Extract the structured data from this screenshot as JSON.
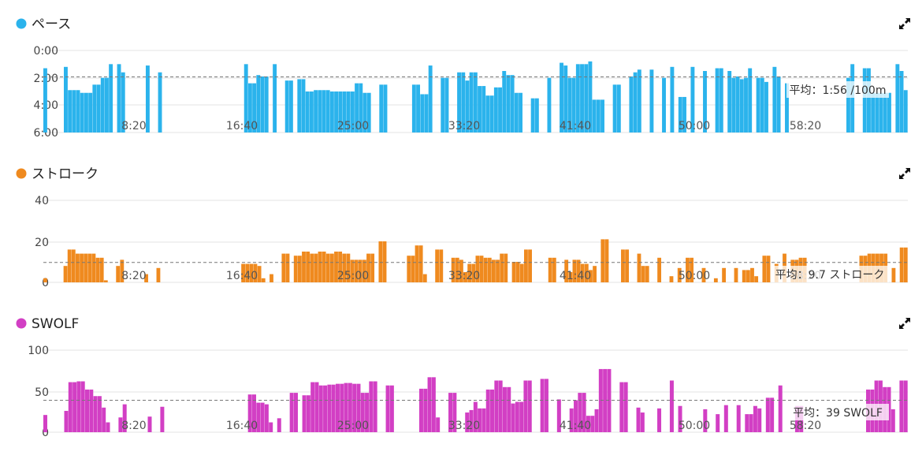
{
  "panels": [
    {
      "title": "ペース",
      "color": "#2bb3ec",
      "expand_icon": "expand-arrows-icon",
      "avg_label": "平均：1:56 /100m",
      "chart_data": {
        "type": "bar",
        "y_ticks": [
          "0:00",
          "2:00",
          "4:00",
          "6:00"
        ],
        "y_inverted": true,
        "ylim": [
          0,
          6
        ],
        "x_ticks": [
          "8:20",
          "16:40",
          "25:00",
          "33:20",
          "41:40",
          "50:00",
          "58:20"
        ],
        "average": 1.93,
        "values": [
          1.3,
          0,
          0,
          0,
          0,
          1.2,
          2.9,
          2.9,
          2.9,
          3.1,
          3.1,
          3.1,
          2.5,
          2.5,
          2.0,
          2.0,
          1.0,
          0,
          1.0,
          1.6,
          0,
          0,
          0,
          0,
          0,
          1.1,
          0,
          0,
          1.6,
          0,
          0,
          0,
          0,
          0,
          0,
          0,
          0,
          0,
          0,
          0,
          0,
          0,
          0,
          0,
          0,
          0,
          0,
          0,
          0,
          1.0,
          2.4,
          2.4,
          1.8,
          1.9,
          1.9,
          0,
          1.0,
          0,
          0,
          2.2,
          2.2,
          0,
          2.1,
          2.1,
          3.0,
          3.0,
          2.9,
          2.9,
          2.9,
          2.9,
          3.0,
          3.0,
          3.0,
          3.0,
          3.0,
          3.0,
          2.4,
          2.4,
          3.1,
          3.1,
          0,
          0,
          2.5,
          2.5,
          0,
          0,
          0,
          0,
          0,
          0,
          2.5,
          2.5,
          3.2,
          3.2,
          1.1,
          0,
          0,
          2.0,
          2.0,
          0,
          0,
          1.6,
          1.6,
          2.2,
          1.6,
          1.6,
          2.6,
          2.6,
          3.3,
          3.3,
          2.7,
          2.7,
          1.5,
          1.8,
          1.8,
          3.1,
          3.1,
          0,
          0,
          3.5,
          3.5,
          0,
          0,
          2.0,
          0,
          0,
          0.9,
          1.1,
          2.0,
          2.0,
          1.0,
          1.0,
          1.0,
          0.8,
          3.6,
          3.6,
          3.6,
          0,
          0,
          2.5,
          2.5,
          0,
          0,
          1.9,
          1.6,
          1.4,
          0,
          0,
          1.4,
          0,
          0,
          2.0,
          0,
          1.2,
          0,
          3.4,
          3.4,
          0,
          1.2,
          0,
          0,
          1.5,
          0,
          0,
          1.3,
          1.3,
          0,
          1.5,
          2.0,
          1.9,
          2.1,
          2.0,
          1.3,
          0,
          2.0,
          2.0,
          2.3,
          0,
          1.2,
          1.9,
          0,
          2.4,
          0,
          0,
          0,
          0,
          0,
          0,
          0,
          0,
          0,
          0,
          0,
          0,
          0,
          0,
          2.0,
          1.0,
          0,
          0,
          1.3,
          1.3,
          3.1,
          3.1,
          3.1,
          3.1,
          3.1,
          0,
          1.0,
          1.5,
          2.9
        ]
      }
    },
    {
      "title": "ストローク",
      "color": "#ef8a1f",
      "expand_icon": "expand-arrows-icon",
      "avg_label": "平均：9.7 ストローク",
      "chart_data": {
        "type": "bar",
        "y_ticks": [
          "40",
          "20",
          "0"
        ],
        "y_inverted": false,
        "ylim": [
          0,
          40
        ],
        "x_ticks": [
          "8:20",
          "16:40",
          "25:00",
          "33:20",
          "41:40",
          "50:00",
          "58:20"
        ],
        "average": 9.7,
        "values": [
          2,
          0,
          0,
          0,
          0,
          8,
          16,
          16,
          14,
          14,
          14,
          14,
          14,
          12,
          12,
          1,
          0,
          0,
          8,
          11,
          0,
          0,
          0,
          0,
          0,
          4,
          0,
          0,
          7,
          0,
          0,
          0,
          0,
          0,
          0,
          0,
          0,
          0,
          0,
          0,
          0,
          0,
          0,
          0,
          0,
          0,
          0,
          0,
          0,
          9,
          9,
          9,
          9,
          8,
          2,
          0,
          4,
          0,
          0,
          14,
          14,
          0,
          13,
          13,
          15,
          15,
          14,
          14,
          15,
          15,
          14,
          14,
          15,
          15,
          14,
          14,
          11,
          11,
          11,
          11,
          14,
          14,
          0,
          20,
          20,
          0,
          0,
          0,
          0,
          0,
          13,
          13,
          18,
          18,
          4,
          0,
          0,
          16,
          16,
          0,
          0,
          12,
          12,
          11,
          5,
          9,
          9,
          13,
          13,
          12,
          12,
          11,
          11,
          14,
          14,
          0,
          10,
          10,
          9,
          16,
          16,
          0,
          0,
          0,
          0,
          12,
          12,
          0,
          0,
          11,
          5,
          11,
          11,
          9,
          9,
          6,
          8,
          0,
          21,
          21,
          0,
          0,
          0,
          16,
          16,
          0,
          0,
          14,
          8,
          8,
          0,
          0,
          12,
          0,
          0,
          3,
          0,
          7,
          0,
          12,
          12,
          0,
          0,
          7,
          0,
          0,
          2,
          0,
          7,
          0,
          0,
          7,
          0,
          6,
          6,
          7,
          3,
          0,
          13,
          13,
          0,
          9,
          0,
          14,
          0,
          11,
          11,
          12,
          12,
          0,
          0,
          0,
          0,
          0,
          0,
          0,
          0,
          0,
          0,
          0,
          0,
          0,
          13,
          13,
          14,
          14,
          14,
          14,
          14,
          0,
          7,
          0,
          17,
          17
        ]
      }
    },
    {
      "title": "SWOLF",
      "color": "#d23fc4",
      "expand_icon": "expand-arrows-icon",
      "avg_label": "平均：39 SWOLF",
      "chart_data": {
        "type": "bar",
        "y_ticks": [
          "100",
          "50",
          "0"
        ],
        "y_inverted": false,
        "ylim": [
          0,
          100
        ],
        "x_ticks": [
          "8:20",
          "16:40",
          "25:00",
          "33:20",
          "41:40",
          "50:00",
          "58:20"
        ],
        "average": 39,
        "values": [
          21,
          0,
          0,
          0,
          0,
          26,
          61,
          61,
          62,
          62,
          52,
          52,
          44,
          44,
          30,
          12,
          0,
          0,
          18,
          34,
          0,
          0,
          0,
          0,
          0,
          19,
          0,
          0,
          31,
          0,
          0,
          0,
          0,
          0,
          0,
          0,
          0,
          0,
          0,
          0,
          0,
          0,
          0,
          0,
          0,
          0,
          0,
          0,
          0,
          46,
          46,
          36,
          36,
          34,
          12,
          0,
          17,
          0,
          0,
          48,
          48,
          0,
          45,
          45,
          61,
          61,
          57,
          57,
          58,
          58,
          59,
          59,
          60,
          60,
          59,
          59,
          48,
          48,
          62,
          62,
          0,
          0,
          57,
          57,
          0,
          0,
          0,
          0,
          0,
          0,
          53,
          53,
          67,
          67,
          18,
          0,
          0,
          48,
          48,
          0,
          0,
          24,
          27,
          37,
          29,
          29,
          52,
          52,
          63,
          63,
          55,
          55,
          35,
          37,
          37,
          63,
          63,
          0,
          0,
          65,
          65,
          0,
          0,
          40,
          0,
          0,
          29,
          39,
          48,
          48,
          20,
          20,
          28,
          77,
          77,
          77,
          0,
          0,
          61,
          61,
          0,
          0,
          30,
          24,
          0,
          0,
          0,
          29,
          0,
          0,
          63,
          0,
          32,
          0,
          0,
          0,
          0,
          0,
          28,
          0,
          0,
          22,
          0,
          33,
          0,
          0,
          33,
          0,
          22,
          22,
          32,
          29,
          0,
          42,
          42,
          0,
          57,
          0,
          0,
          0,
          32,
          32,
          0,
          0,
          0,
          0,
          0,
          0,
          0,
          0,
          0,
          0,
          0,
          0,
          0,
          0,
          0,
          52,
          52,
          63,
          63,
          55,
          55,
          28,
          0,
          63,
          63
        ]
      }
    }
  ]
}
